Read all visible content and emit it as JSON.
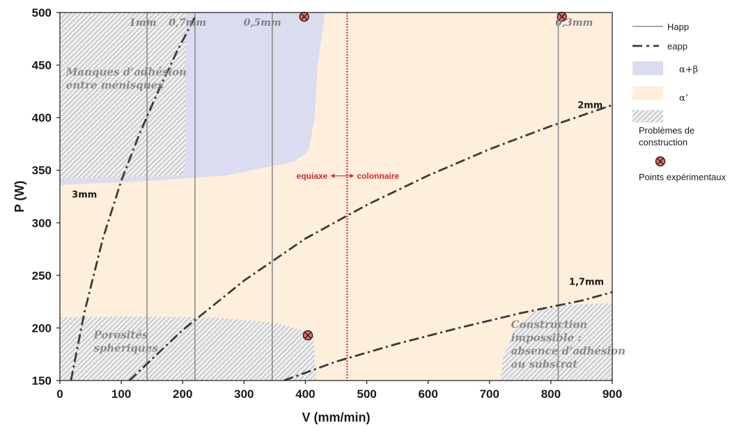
{
  "chart_data": {
    "type": "line",
    "xlabel": "V (mm/min)",
    "ylabel": "P (W)",
    "xlim": [
      0,
      900
    ],
    "ylim": [
      150,
      500
    ],
    "xticks": [
      0,
      100,
      200,
      300,
      400,
      500,
      600,
      700,
      800,
      900
    ],
    "yticks": [
      150,
      200,
      250,
      300,
      350,
      400,
      450,
      500
    ],
    "grid": false,
    "legend_position": "right",
    "colors": {
      "alpha_beta": "#dcdcf0",
      "alpha_prime": "#fdefdc",
      "hatch": "#a8a8a8",
      "happ_line": "#8c8c8c",
      "eapp_line": "#3a3a3a",
      "transition": "#d9252a",
      "point_fill": "#e8735f"
    },
    "regions": [
      {
        "id": "alpha_prime",
        "fill": "#fdefdc",
        "points": [
          [
            0,
            150
          ],
          [
            900,
            150
          ],
          [
            900,
            500
          ],
          [
            0,
            500
          ]
        ]
      },
      {
        "id": "alpha_beta",
        "fill": "#dcdcf0",
        "points": [
          [
            0,
            336
          ],
          [
            150,
            340
          ],
          [
            270,
            345
          ],
          [
            380,
            358
          ],
          [
            405,
            368
          ],
          [
            415,
            400
          ],
          [
            420,
            450
          ],
          [
            432,
            500
          ],
          [
            0,
            500
          ]
        ]
      }
    ],
    "hatched_regions": [
      {
        "label": "Manques d’adhésion entre ménisques",
        "label_lines": [
          "Manques  d’adhésion",
          "entre ménisques"
        ],
        "label_pos": [
          10,
          440,
          465
        ],
        "points": [
          [
            0,
            342
          ],
          [
            200,
            345
          ],
          [
            205,
            355
          ],
          [
            205,
            500
          ],
          [
            0,
            500
          ]
        ]
      },
      {
        "label": "Porosités sphériques",
        "label_lines": [
          "Porosités",
          "sphériques"
        ],
        "label_pos": [
          55,
          190,
          208
        ],
        "points": [
          [
            0,
            150
          ],
          [
            418,
            150
          ],
          [
            413,
            195
          ],
          [
            350,
            205
          ],
          [
            250,
            210
          ],
          [
            100,
            211
          ],
          [
            0,
            210
          ]
        ]
      },
      {
        "label": "Construction impossible : absence d’adhésion au substrat",
        "label_lines": [
          "Construction",
          "impossible :",
          "absence d’adhésion",
          "au substrat"
        ],
        "label_pos": [
          735,
          200,
          15
        ],
        "points": [
          [
            718,
            150
          ],
          [
            722,
            172
          ],
          [
            742,
            200
          ],
          [
            775,
            216
          ],
          [
            830,
            222
          ],
          [
            900,
            224
          ],
          [
            900,
            150
          ]
        ]
      }
    ],
    "happ_lines": [
      {
        "name": "1mm",
        "x": 142,
        "label_x": 135
      },
      {
        "name": "0,7mm",
        "x": 220,
        "label_x": 208
      },
      {
        "name": "0,5mm",
        "x": 346,
        "label_x": 330
      },
      {
        "name": "0,3mm",
        "x": 812,
        "label_x": 838
      }
    ],
    "eapp_series": [
      {
        "name": "3mm",
        "label_at": [
          40,
          324
        ],
        "x": [
          18,
          40,
          70,
          100,
          130,
          160,
          190,
          222
        ],
        "y": [
          150,
          215,
          285,
          340,
          385,
          425,
          462,
          498
        ]
      },
      {
        "name": "2mm",
        "label_at": [
          864,
          409
        ],
        "x": [
          113,
          200,
          300,
          400,
          500,
          600,
          700,
          800,
          900
        ],
        "y": [
          150,
          198,
          245,
          285,
          317,
          345,
          370,
          392,
          412
        ]
      },
      {
        "name": "1,7mm",
        "label_at": [
          858,
          241
        ],
        "x": [
          365,
          450,
          550,
          650,
          750,
          850,
          900
        ],
        "y": [
          150,
          168,
          185,
          200,
          214,
          226,
          234
        ]
      }
    ],
    "transition": {
      "x": 468,
      "left_label": "equiaxe",
      "right_label": "colonnaire",
      "label_y": 342
    },
    "points": [
      {
        "x": 398,
        "y": 496
      },
      {
        "x": 818,
        "y": 496
      },
      {
        "x": 404,
        "y": 193
      }
    ],
    "legend": {
      "happ": "Happ",
      "eapp": "eapp",
      "alpha_beta": "α+β",
      "alpha_prime": "α’",
      "problems": "Problèmes de construction",
      "problems_lines": [
        "Problèmes de",
        "construction"
      ],
      "points": "Points expérimentaux"
    }
  }
}
